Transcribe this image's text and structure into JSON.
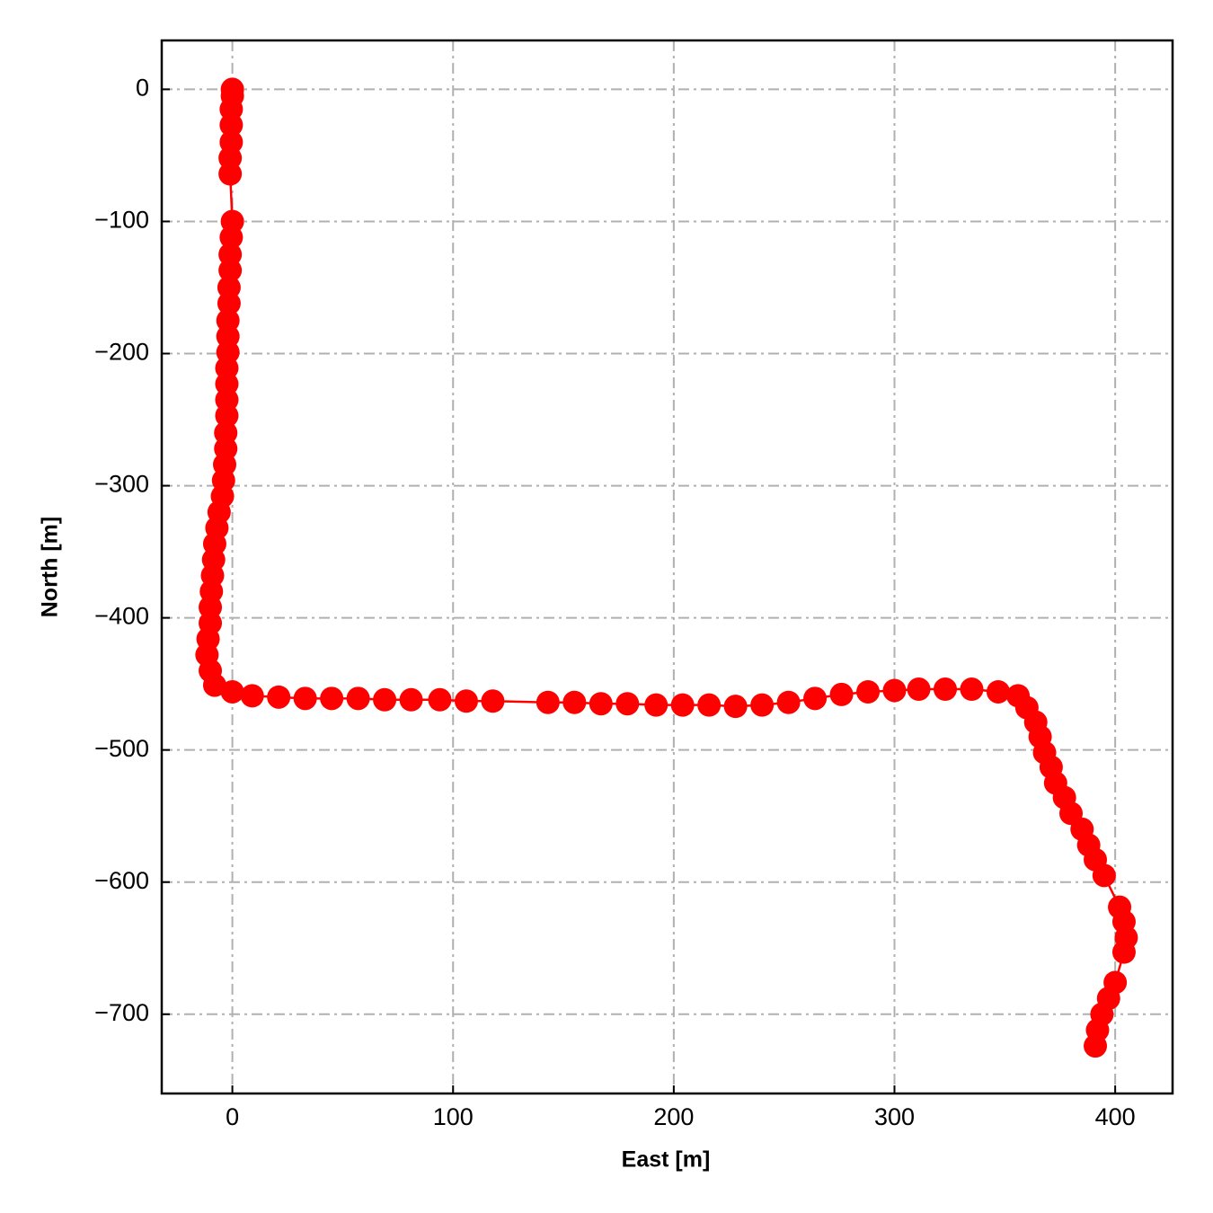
{
  "chart_data": {
    "type": "line",
    "xlabel": "East [m]",
    "ylabel": "North [m]",
    "x": [
      0,
      0,
      -0.5,
      -0.5,
      -0.5,
      -1,
      -1,
      0,
      -0.5,
      -1,
      -1,
      -1.5,
      -1.5,
      -2,
      -2,
      -2,
      -2.5,
      -2.5,
      -2.5,
      -2.5,
      -3,
      -3,
      -3.5,
      -4,
      -4.5,
      -6,
      -7,
      -8,
      -8.5,
      -9,
      -9.5,
      -10,
      -10,
      -11,
      -11.5,
      -10,
      -8,
      0,
      9,
      21,
      33,
      45,
      57,
      69,
      81,
      94,
      106,
      118,
      143,
      155,
      167,
      179,
      192,
      204,
      216,
      228,
      240,
      252,
      264,
      276,
      288,
      300,
      311,
      323,
      335,
      347,
      356,
      360,
      364,
      366,
      368,
      371,
      373,
      377,
      380,
      385,
      388,
      391,
      395,
      402,
      404,
      405,
      404,
      400,
      397,
      394,
      392,
      391
    ],
    "series": [
      {
        "color": "#ff0000",
        "values": [
          0,
          -5,
          -15,
          -27,
          -40,
          -52,
          -64,
          -100,
          -112,
          -125,
          -137,
          -150,
          -162,
          -175,
          -187,
          -199,
          -211,
          -223,
          -235,
          -247,
          -260,
          -272,
          -284,
          -296,
          -308,
          -320,
          -332,
          -344,
          -356,
          -368,
          -380,
          -392,
          -404,
          -416,
          -428,
          -440,
          -451,
          -456,
          -459,
          -460,
          -461,
          -461,
          -461,
          -462,
          -462,
          -462,
          -463,
          -463,
          -464,
          -464,
          -465,
          -465,
          -466,
          -466,
          -466,
          -467,
          -466,
          -464,
          -461,
          -458,
          -456,
          -455,
          -454,
          -454,
          -454,
          -456,
          -459,
          -468,
          -479,
          -490,
          -502,
          -513,
          -525,
          -536,
          -548,
          -560,
          -572,
          -583,
          -595,
          -619,
          -630,
          -642,
          -653,
          -676,
          -688,
          -700,
          -712,
          -724
        ]
      }
    ],
    "xlim": [
      -32,
      426
    ],
    "ylim": [
      -760,
      37
    ],
    "xticks": [
      0,
      100,
      200,
      300,
      400
    ],
    "yticks": [
      0,
      {
        "value": -100,
        "label": "−100"
      },
      {
        "value": -200,
        "label": "−200"
      },
      {
        "value": -300,
        "label": "−300"
      },
      {
        "value": -400,
        "label": "−400"
      },
      {
        "value": -500,
        "label": "−500"
      },
      {
        "value": -600,
        "label": "−600"
      },
      {
        "value": -700,
        "label": "−700"
      }
    ],
    "grid": true
  }
}
